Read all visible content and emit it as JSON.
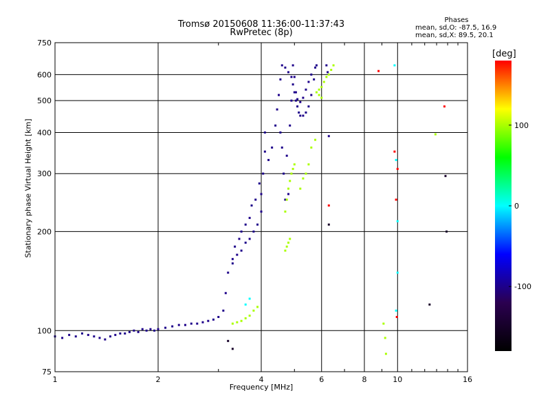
{
  "chart_data": {
    "type": "scatter",
    "title": "Tromsø 20150608 11:36:00-11:37:43",
    "subtitle": "RwPretec (8p)",
    "xlabel": "Frequency [MHz]",
    "ylabel": "Stationary phase Virtual Height [km]",
    "x_scale": "log",
    "y_scale": "log",
    "xlim": [
      1,
      16
    ],
    "ylim": [
      75,
      750
    ],
    "x_ticks": [
      1,
      2,
      4,
      6,
      8,
      10,
      16
    ],
    "x_tick_labels": [
      "1",
      "2",
      "4",
      "6",
      "8",
      "10",
      "16"
    ],
    "y_ticks": [
      75,
      100,
      200,
      300,
      400,
      500,
      600,
      750
    ],
    "y_tick_labels": [
      "75",
      "100",
      "200",
      "300",
      "400",
      "500",
      "600",
      "750"
    ],
    "grid": true,
    "colorbar": {
      "label": "[deg]",
      "range": [
        -180,
        180
      ],
      "ticks": [
        100,
        0,
        -100
      ],
      "tick_labels": [
        "100",
        "0",
        "-100"
      ],
      "colors": [
        "#000000",
        "#2b0050",
        "#0000ff",
        "#00ffff",
        "#00ff00",
        "#ffff00",
        "#ff0000"
      ]
    },
    "annotation": {
      "title": "Phases",
      "line1": "mean, sd,O: -87.5, 16.9",
      "line2": "mean, sd,X: 89.5, 20.1"
    },
    "series": [
      {
        "color_phase": -100,
        "points": [
          [
            1.0,
            96
          ],
          [
            1.05,
            95
          ],
          [
            1.1,
            97
          ],
          [
            1.15,
            96
          ],
          [
            1.2,
            98
          ],
          [
            1.25,
            97
          ],
          [
            1.3,
            96
          ],
          [
            1.35,
            95
          ],
          [
            1.4,
            94
          ],
          [
            1.45,
            96
          ],
          [
            1.5,
            97
          ],
          [
            1.55,
            98
          ],
          [
            1.6,
            98
          ],
          [
            1.65,
            99
          ],
          [
            1.7,
            100
          ],
          [
            1.75,
            99
          ],
          [
            1.8,
            101
          ],
          [
            1.85,
            100
          ],
          [
            1.9,
            101
          ],
          [
            1.95,
            100
          ],
          [
            2.0,
            101
          ],
          [
            2.1,
            102
          ],
          [
            2.2,
            103
          ],
          [
            2.3,
            104
          ],
          [
            2.4,
            104
          ],
          [
            2.5,
            105
          ],
          [
            2.6,
            105
          ],
          [
            2.7,
            106
          ],
          [
            2.8,
            107
          ],
          [
            2.9,
            108
          ],
          [
            3.0,
            110
          ],
          [
            3.1,
            115
          ],
          [
            3.15,
            130
          ],
          [
            3.2,
            150
          ],
          [
            3.3,
            160
          ],
          [
            3.4,
            170
          ],
          [
            3.5,
            175
          ],
          [
            3.6,
            185
          ],
          [
            3.7,
            190
          ],
          [
            3.8,
            200
          ],
          [
            3.9,
            210
          ],
          [
            4.0,
            230
          ],
          [
            4.0,
            260
          ],
          [
            4.05,
            300
          ],
          [
            4.1,
            350
          ],
          [
            4.1,
            400
          ],
          [
            3.95,
            280
          ],
          [
            3.85,
            250
          ],
          [
            3.75,
            240
          ],
          [
            3.7,
            220
          ],
          [
            3.6,
            210
          ],
          [
            3.5,
            200
          ],
          [
            3.45,
            190
          ],
          [
            3.35,
            180
          ],
          [
            3.3,
            165
          ],
          [
            4.2,
            330
          ],
          [
            4.3,
            360
          ],
          [
            4.4,
            420
          ],
          [
            4.45,
            470
          ],
          [
            4.5,
            520
          ],
          [
            4.55,
            580
          ],
          [
            4.6,
            640
          ],
          [
            4.7,
            630
          ],
          [
            4.8,
            610
          ],
          [
            4.9,
            590
          ],
          [
            4.95,
            560
          ],
          [
            5.0,
            530
          ],
          [
            5.05,
            500
          ],
          [
            5.1,
            480
          ],
          [
            5.15,
            460
          ],
          [
            5.2,
            450
          ],
          [
            5.3,
            450
          ],
          [
            5.4,
            460
          ],
          [
            5.5,
            480
          ],
          [
            5.6,
            520
          ],
          [
            5.7,
            580
          ],
          [
            5.75,
            630
          ],
          [
            5.8,
            640
          ],
          [
            5.6,
            600
          ],
          [
            5.5,
            570
          ],
          [
            5.4,
            540
          ],
          [
            5.3,
            510
          ],
          [
            5.2,
            495
          ],
          [
            5.1,
            505
          ],
          [
            5.05,
            530
          ],
          [
            4.55,
            400
          ],
          [
            4.6,
            360
          ],
          [
            4.65,
            300
          ],
          [
            4.7,
            250
          ],
          [
            4.8,
            260
          ],
          [
            4.75,
            340
          ],
          [
            4.85,
            420
          ],
          [
            4.9,
            500
          ],
          [
            5.0,
            590
          ],
          [
            4.95,
            640
          ],
          [
            6.2,
            640
          ],
          [
            6.25,
            610
          ],
          [
            6.3,
            390
          ]
        ]
      },
      {
        "color_phase": 100,
        "points": [
          [
            3.3,
            105
          ],
          [
            3.4,
            106
          ],
          [
            3.5,
            107
          ],
          [
            3.6,
            109
          ],
          [
            3.7,
            111
          ],
          [
            3.8,
            115
          ],
          [
            3.9,
            118
          ],
          [
            4.7,
            230
          ],
          [
            4.75,
            250
          ],
          [
            4.8,
            270
          ],
          [
            4.85,
            285
          ],
          [
            4.9,
            300
          ],
          [
            4.95,
            310
          ],
          [
            5.0,
            320
          ],
          [
            4.7,
            175
          ],
          [
            4.75,
            180
          ],
          [
            4.8,
            185
          ],
          [
            4.85,
            190
          ],
          [
            5.2,
            270
          ],
          [
            5.3,
            290
          ],
          [
            5.4,
            300
          ],
          [
            5.5,
            320
          ],
          [
            5.6,
            360
          ],
          [
            5.75,
            380
          ],
          [
            5.8,
            530
          ],
          [
            5.9,
            540
          ],
          [
            6.0,
            550
          ],
          [
            6.1,
            570
          ],
          [
            6.2,
            590
          ],
          [
            6.3,
            600
          ],
          [
            6.4,
            620
          ],
          [
            6.5,
            640
          ],
          [
            5.9,
            520
          ],
          [
            6.0,
            510
          ],
          [
            9.1,
            105
          ],
          [
            9.2,
            95
          ],
          [
            9.25,
            85
          ],
          [
            12.9,
            395
          ]
        ]
      },
      {
        "color_phase": 0,
        "points": [
          [
            9.8,
            640
          ],
          [
            9.9,
            330
          ],
          [
            10.0,
            215
          ],
          [
            10.0,
            150
          ],
          [
            9.9,
            115
          ],
          [
            3.6,
            120
          ],
          [
            3.7,
            125
          ]
        ]
      },
      {
        "color_phase": 180,
        "points": [
          [
            9.8,
            350
          ],
          [
            10.0,
            310
          ],
          [
            9.9,
            250
          ],
          [
            9.95,
            110
          ],
          [
            6.3,
            240
          ],
          [
            8.8,
            615
          ],
          [
            13.7,
            480
          ]
        ]
      },
      {
        "color_phase": -150,
        "points": [
          [
            13.9,
            200
          ],
          [
            13.8,
            295
          ],
          [
            12.4,
            120
          ],
          [
            3.2,
            93
          ],
          [
            3.3,
            88
          ],
          [
            6.3,
            210
          ]
        ]
      }
    ]
  }
}
